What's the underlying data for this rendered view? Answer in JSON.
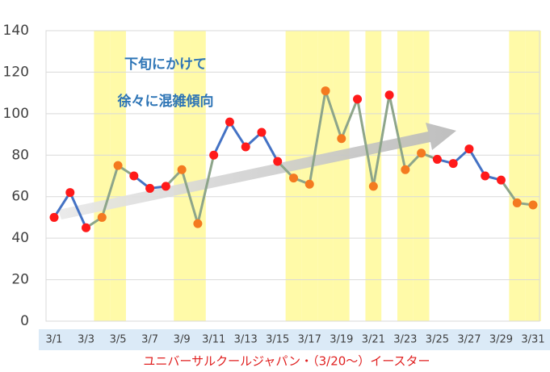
{
  "chart_data": {
    "type": "line",
    "categories": [
      "3/1",
      null,
      "3/3",
      null,
      "3/5",
      null,
      "3/7",
      null,
      "3/9",
      null,
      "3/11",
      null,
      "3/13",
      null,
      "3/15",
      null,
      "3/17",
      null,
      "3/19",
      null,
      "3/21",
      null,
      "3/23",
      null,
      "3/25",
      null,
      "3/27",
      null,
      "3/29",
      null,
      "3/31"
    ],
    "values": [
      50,
      62,
      45,
      50,
      75,
      70,
      64,
      65,
      73,
      47,
      80,
      96,
      84,
      91,
      77,
      69,
      66,
      111,
      88,
      107,
      65,
      109,
      73,
      81,
      78,
      76,
      83,
      70,
      68,
      57,
      56
    ],
    "highlighted": [
      false,
      false,
      false,
      true,
      true,
      false,
      false,
      false,
      true,
      true,
      false,
      false,
      false,
      false,
      false,
      true,
      true,
      true,
      true,
      false,
      true,
      false,
      true,
      true,
      false,
      false,
      false,
      false,
      false,
      true,
      true
    ],
    "color": "#4472c4",
    "highlight_line_color": "#8da58a",
    "marker_color": "#ff1a1a",
    "highlight_marker_color": "#f47a20",
    "band_color": "#fffaa8",
    "ylim": [
      0,
      140
    ],
    "yticks": [
      0,
      20,
      40,
      60,
      80,
      100,
      120,
      140
    ],
    "grid": true,
    "annotations": [
      "下旬にかけて",
      "徐々に混雑傾向"
    ],
    "x_label": "ユニバーサルクールジャパン・（3/20～）イースター"
  }
}
